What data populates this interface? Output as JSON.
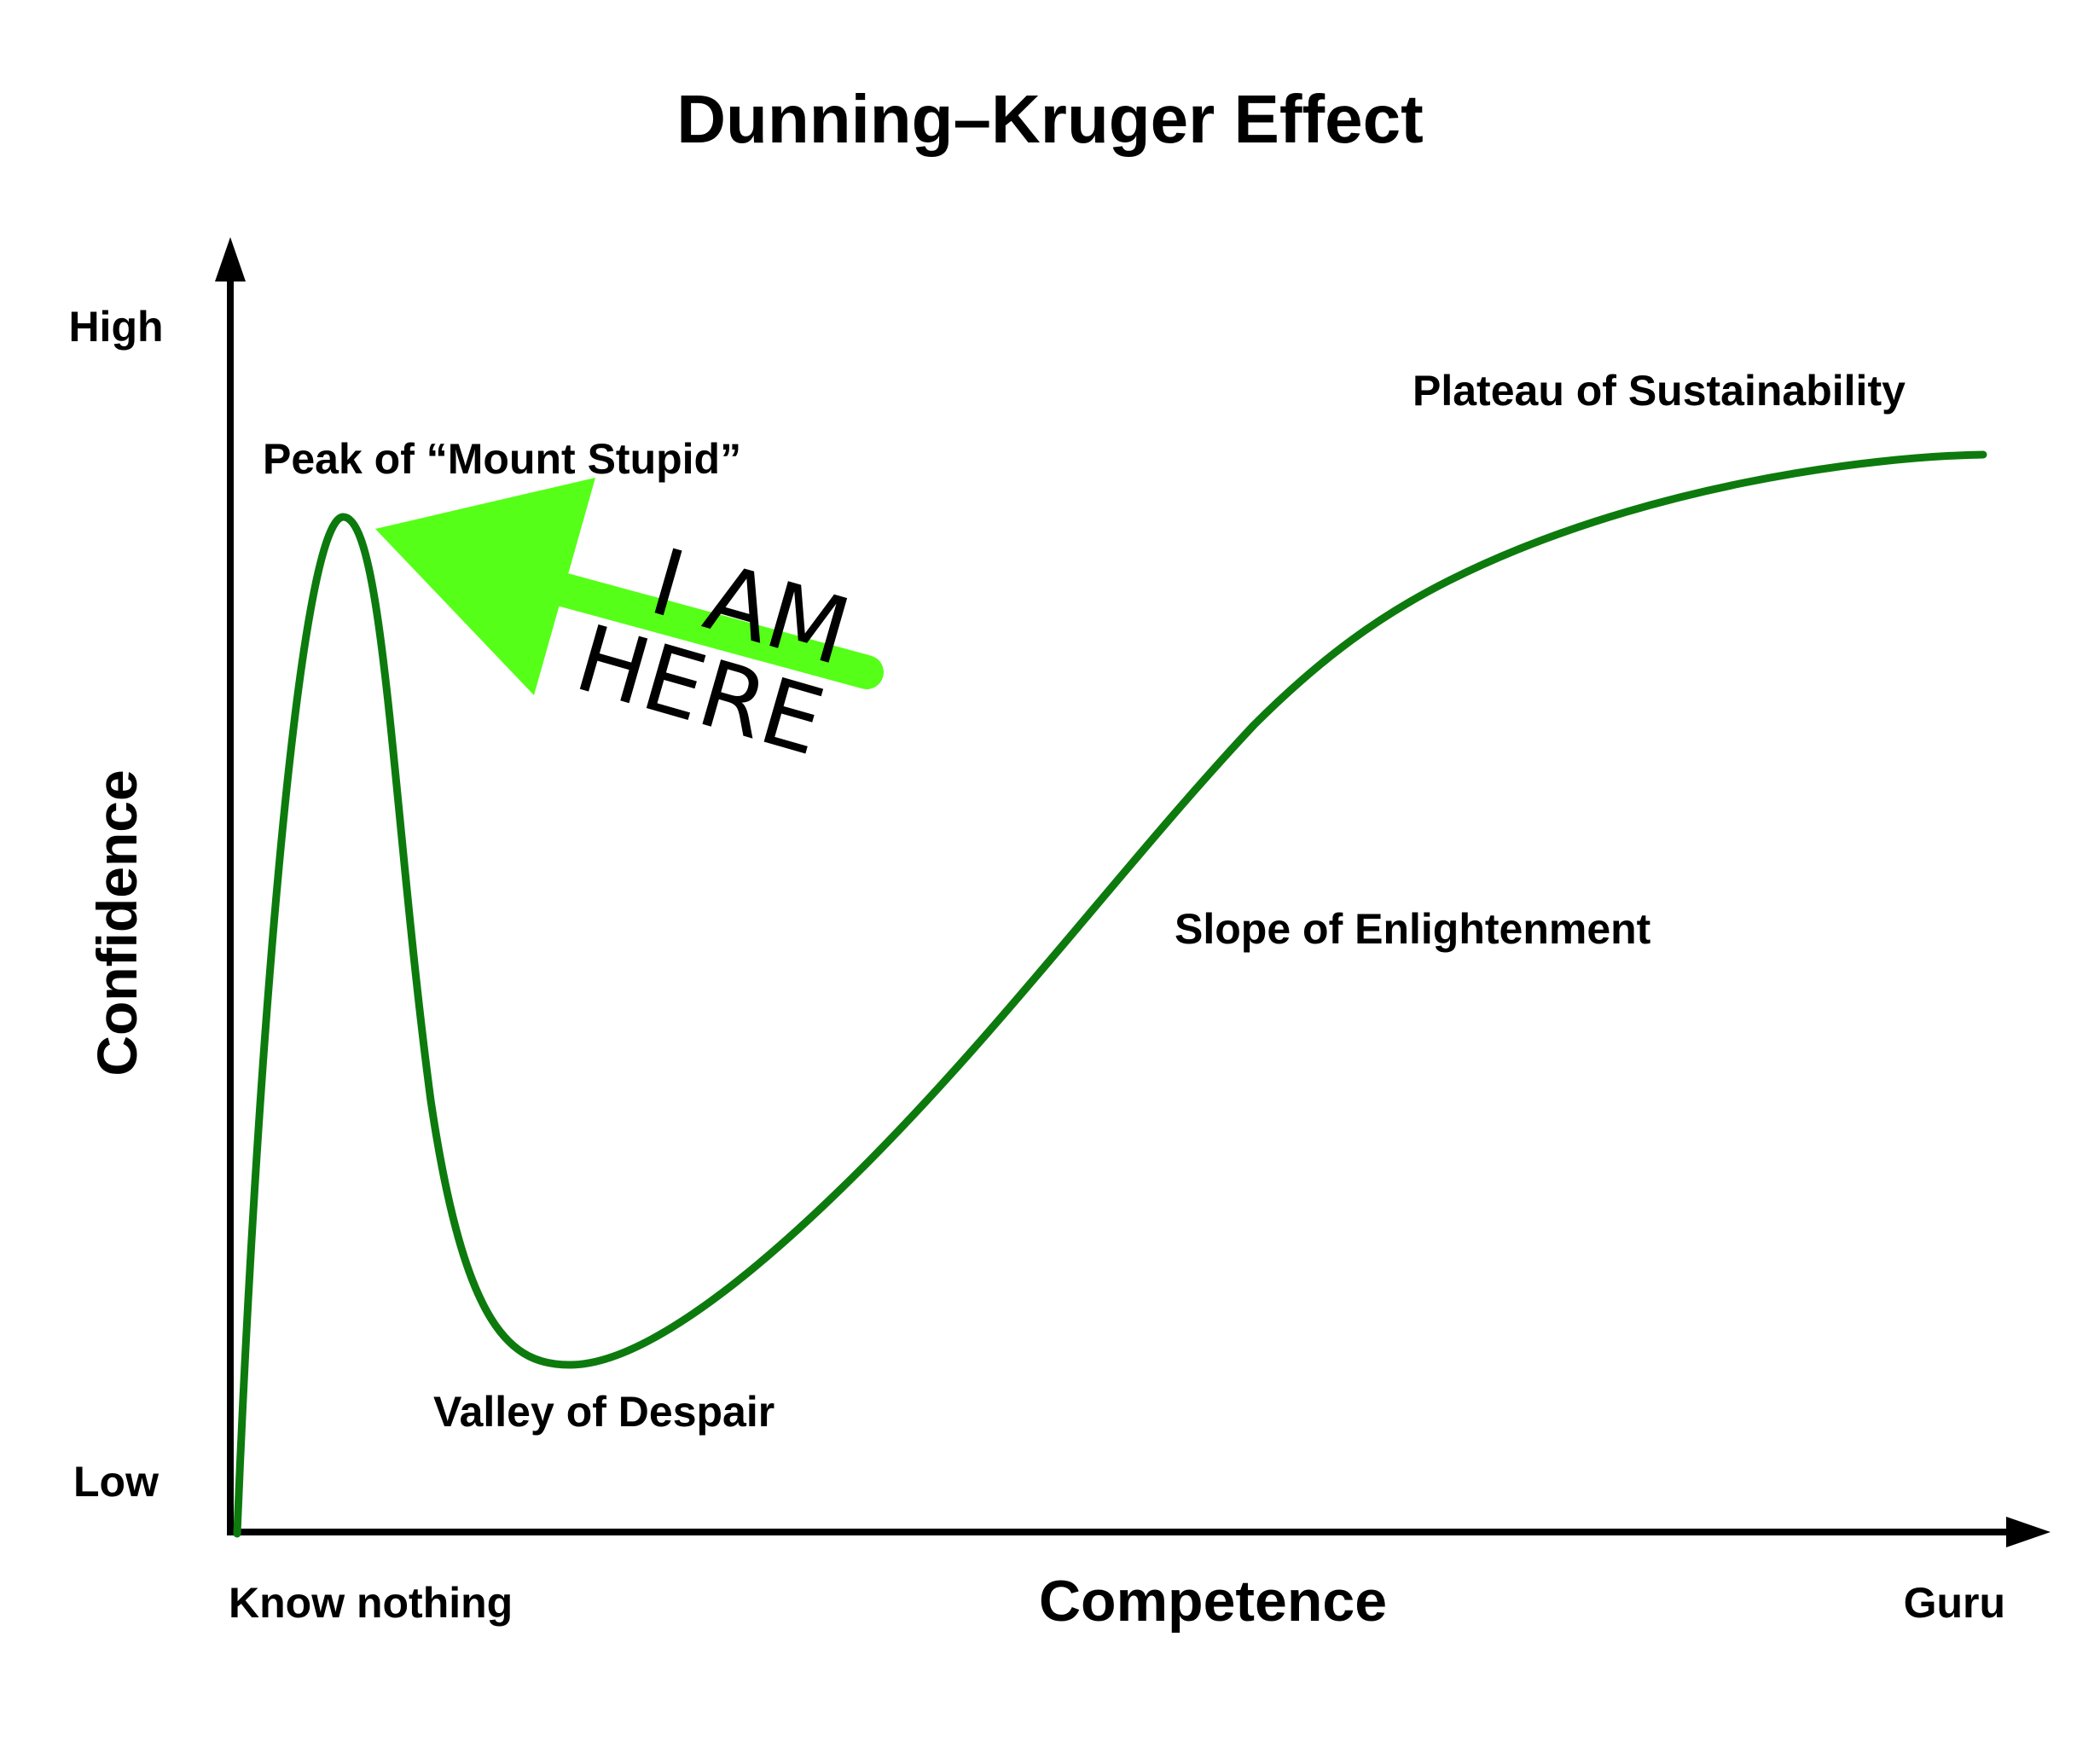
{
  "title": "Dunning–Kruger Effect",
  "y_axis": {
    "label": "Confidence",
    "high_label": "High",
    "low_label": "Low"
  },
  "x_axis": {
    "label": "Competence",
    "start_label": "Know nothing",
    "end_label": "Guru"
  },
  "regions": {
    "peak": "Peak of “Mount Stupid”",
    "valley": "Valley of Despair",
    "slope": "Slope of Enlightenment",
    "plateau": "Plateau of Sustainability"
  },
  "callout": {
    "line1": "I AM",
    "line2": "HERE"
  },
  "colors": {
    "curve": "#0d7a0d",
    "arrow": "#55ff18",
    "axes": "#000000",
    "background": "#ffffff"
  }
}
